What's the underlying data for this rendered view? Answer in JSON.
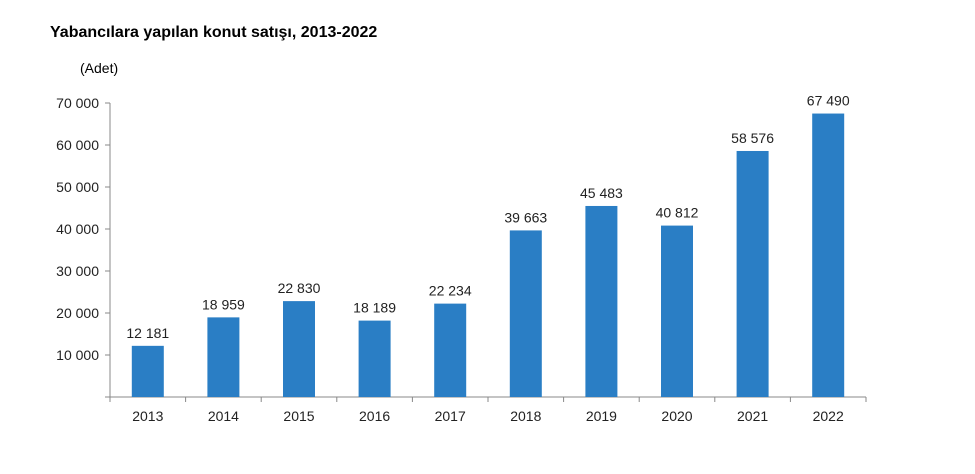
{
  "chart_data": {
    "type": "bar",
    "title": "Yabancılara yapılan konut satışı, 2013-2022",
    "unit_label": "(Adet)",
    "xlabel": "",
    "ylabel": "",
    "categories": [
      "2013",
      "2014",
      "2015",
      "2016",
      "2017",
      "2018",
      "2019",
      "2020",
      "2021",
      "2022"
    ],
    "values": [
      12181,
      18959,
      22830,
      18189,
      22234,
      39663,
      45483,
      40812,
      58576,
      67490
    ],
    "data_labels": [
      "12 181",
      "18 959",
      "22 830",
      "18 189",
      "22 234",
      "39 663",
      "45 483",
      "40 812",
      "58 576",
      "67 490"
    ],
    "y_ticks": [
      10000,
      20000,
      30000,
      40000,
      50000,
      60000,
      70000
    ],
    "y_tick_labels": [
      "10 000",
      "20 000",
      "30 000",
      "40 000",
      "50 000",
      "60 000",
      "70 000"
    ],
    "ylim": [
      0,
      70000
    ],
    "grid": false,
    "legend": "none",
    "bar_color": "#2a7ec5"
  }
}
